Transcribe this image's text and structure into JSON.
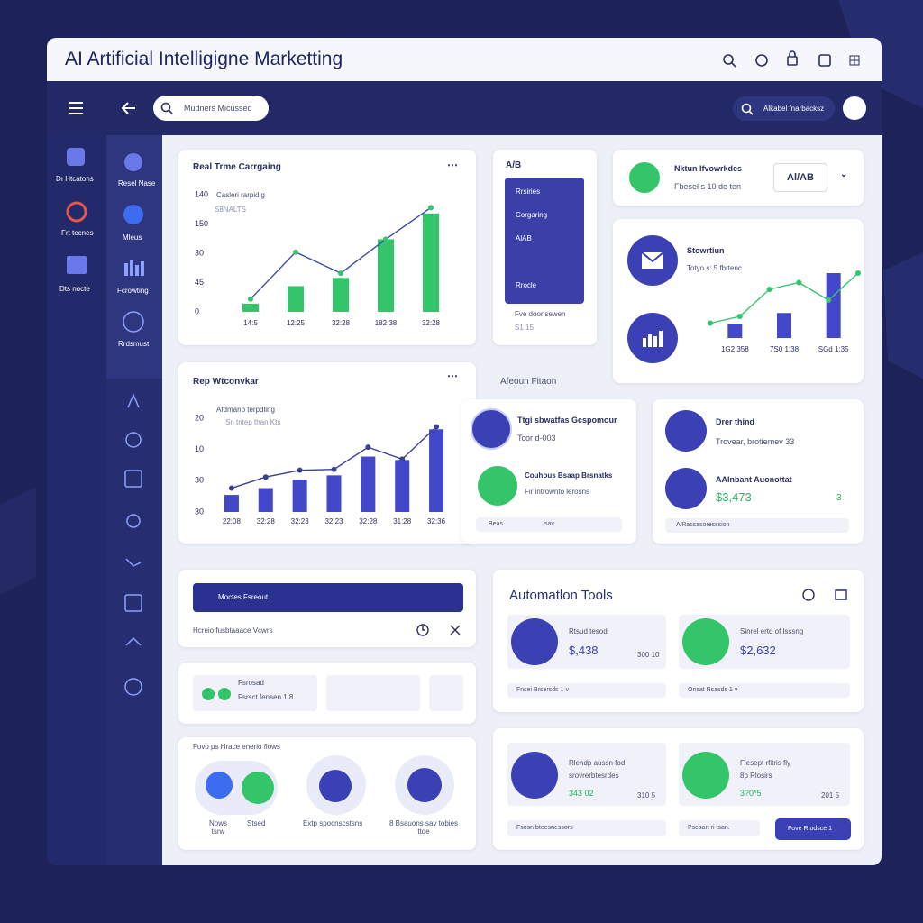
{
  "window": {
    "title": "AI Artificial Intelligigne Marketting"
  },
  "toolbar": {
    "search": "Mudners Micussed",
    "filter": "Alkabel fnarbacksz"
  },
  "sidebar": {
    "items": [
      "Dı Htcatons",
      "Frt tecnes",
      "Dts nocte"
    ]
  },
  "subnav": {
    "items": [
      "Resel Nase",
      "Mleus",
      "Fcrowting",
      "Rrdsmust"
    ]
  },
  "charts": [
    {
      "type": "bar",
      "title": "Real Trme Carrgaing",
      "legend": [
        "Casleri rarpidig",
        "S8NALTS"
      ],
      "y_labels": [
        "140",
        "150",
        "30",
        "45",
        "0"
      ],
      "categories": [
        "14:5",
        "12:25",
        "32:28",
        "182:38",
        "32:28"
      ],
      "ylim": [
        0,
        100
      ],
      "color": "#34c46a",
      "line_color": "#3d4aa8",
      "point_color": "#34c46a",
      "values": [
        7,
        22,
        29,
        62,
        84
      ],
      "line": [
        11,
        51,
        33,
        62,
        89
      ]
    },
    {
      "type": "bar",
      "title": "Rep Wtconvkar",
      "legend": [
        "Afdmanp terpdling",
        "Sn tritep than Kts"
      ],
      "y_labels": [
        "20",
        "10",
        "30",
        "30"
      ],
      "categories": [
        "22:08",
        "32:28",
        "32:23",
        "32:23",
        "32:28",
        "31:28",
        "32:36"
      ],
      "ylim": [
        0,
        110
      ],
      "color": "#4347c9",
      "line_color": "#3a4190",
      "point_color": "#3a4190",
      "values": [
        20,
        28,
        38,
        43,
        65,
        61,
        97
      ],
      "line": [
        28,
        41,
        49,
        50,
        76,
        62,
        100
      ]
    },
    {
      "type": "bar",
      "title": "Stowrtiun",
      "legend": [
        "Totyo s: 5 fbrtenc"
      ],
      "y_labels": [],
      "categories": [
        "1G2 358",
        "7S0 1:38",
        "SGd 1:35"
      ],
      "ylim": [
        0,
        100
      ],
      "color": "#4347c9",
      "line_color": "#34c46a",
      "point_color": "#34c46a",
      "values": [
        20,
        37,
        96
      ],
      "line": [
        22,
        32,
        72,
        82,
        56,
        96
      ]
    }
  ],
  "ab": {
    "title": "A/B",
    "items": [
      "Rrsiries",
      "Corgaring",
      "AlAB",
      "Rrocle"
    ],
    "footer": [
      "Fve doonsewen",
      "S1 15"
    ]
  },
  "network": {
    "title": "Nktun Ifvowrkdes",
    "subtitle": "Fbesel s 10 de ten",
    "pill": "Al/AB"
  },
  "section_label": "Afeoun Fitaon",
  "campaigns": {
    "items": [
      {
        "title": "Ttgi sbwatfas Gcspomour",
        "text": "Tcor d-003"
      },
      {
        "title": "Couhous Bsaap Brsnatks",
        "text": "Fir intrownto lerosns"
      }
    ],
    "footer": [
      "Beas",
      "sav"
    ]
  },
  "insights": {
    "items": [
      {
        "title": "Drer thind",
        "text": "Trovear, brotiemev 33"
      },
      {
        "title": "AAlnbant Auonottat",
        "value": "$3,473",
        "delta": "3"
      }
    ],
    "footer": "A Rassasoresssion"
  },
  "workflow": {
    "bar": "Moctes Fsreout",
    "row": "Hcreio fusbtaaace Vcwrs"
  },
  "sources": {
    "title": "Fsrosad",
    "text": "Fsrsct fensen 1 8"
  },
  "flows": {
    "title": "Fovo ps Hrace enerio flows",
    "items": [
      "Nows tsrw",
      "Stsed",
      "Extp spocnscstsns",
      "8 Bsauons sav tobies ttde"
    ]
  },
  "automation": {
    "title": "Automatlon Tools",
    "items": [
      {
        "title": "Rtsud tesod",
        "value": "$,438",
        "note": "300 10"
      },
      {
        "title": "Sinrel ertd of lsssng",
        "value": "$2,632"
      }
    ],
    "footer": [
      "Fnsei Brsersds 1 v",
      "Onsat Rsasds 1 v"
    ]
  },
  "reports": {
    "items": [
      {
        "title": "Rlendp aussn fod",
        "subtitle": "srovrerbtesrdes",
        "value": "343 02",
        "note": "310 5"
      },
      {
        "title": "Flesept rfitris fly",
        "subtitle": "8p Rlosirs",
        "value": "3?0*5",
        "note": "201 5"
      }
    ],
    "footer": [
      "Fsosn bteesnessors",
      "Pscaart ri tsan."
    ],
    "button": "Fove Rtodsce 1"
  }
}
